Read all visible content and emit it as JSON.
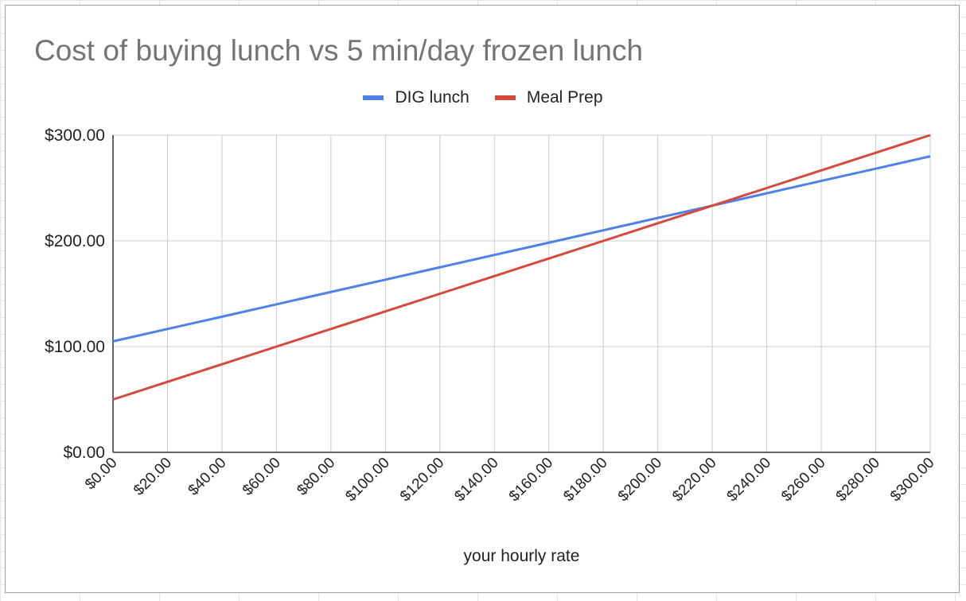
{
  "chart_data": {
    "type": "line",
    "title": "Cost of buying lunch vs 5 min/day frozen lunch",
    "xlabel": "your hourly rate",
    "ylabel": "",
    "x": [
      0,
      20,
      40,
      60,
      80,
      100,
      120,
      140,
      160,
      180,
      200,
      220,
      240,
      260,
      280,
      300
    ],
    "xlim": [
      0,
      300
    ],
    "ylim": [
      0,
      300
    ],
    "x_tick_labels": [
      "$0.00",
      "$20.00",
      "$40.00",
      "$60.00",
      "$80.00",
      "$100.00",
      "$120.00",
      "$140.00",
      "$160.00",
      "$180.00",
      "$200.00",
      "$220.00",
      "$240.00",
      "$260.00",
      "$280.00",
      "$300.00"
    ],
    "y_tick_values": [
      0,
      100,
      200,
      300
    ],
    "y_tick_labels": [
      "$0.00",
      "$100.00",
      "$200.00",
      "$300.00"
    ],
    "grid": true,
    "legend_position": "top-center",
    "series": [
      {
        "name": "DIG lunch",
        "color": "#4f81e7",
        "values": [
          105,
          116.7,
          128.3,
          140,
          151.7,
          163.3,
          175,
          186.7,
          198.3,
          210,
          221.7,
          233.3,
          245,
          256.7,
          268.3,
          280
        ]
      },
      {
        "name": "Meal Prep",
        "color": "#d44a3c",
        "values": [
          50,
          66.7,
          83.3,
          100,
          116.7,
          133.3,
          150,
          166.7,
          183.3,
          200,
          216.7,
          233.3,
          250,
          266.7,
          283.3,
          300
        ]
      }
    ]
  }
}
